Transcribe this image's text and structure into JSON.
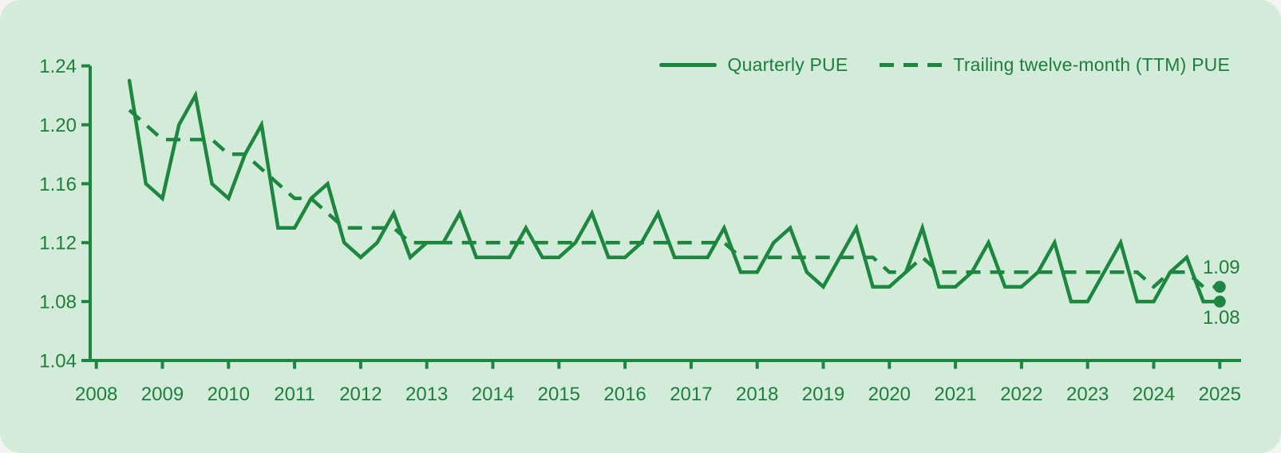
{
  "colors": {
    "line": "#1e873f",
    "text": "#1e7e3d",
    "card_bg": "#d3ecd9",
    "page_bg": "#f5f4f2"
  },
  "chart_data": {
    "type": "line",
    "title": "",
    "grid": false,
    "legend_position": "top-right",
    "x_axis": {
      "tick_labels": [
        "2008",
        "2009",
        "2010",
        "2011",
        "2012",
        "2013",
        "2014",
        "2015",
        "2016",
        "2017",
        "2018",
        "2019",
        "2020",
        "2021",
        "2022",
        "2023",
        "2024",
        "2025"
      ],
      "start_year": 2008,
      "range": [
        2008,
        2025.4
      ]
    },
    "y_axis": {
      "ticks": [
        {
          "label": "1.24",
          "value": 1.24
        },
        {
          "label": "1.20",
          "value": 1.2
        },
        {
          "label": "1.16",
          "value": 1.16
        },
        {
          "label": "1.12",
          "value": 1.12
        },
        {
          "label": "1.08",
          "value": 1.08
        },
        {
          "label": "1.04",
          "value": 1.04
        }
      ],
      "range": [
        1.04,
        1.245
      ]
    },
    "series": [
      {
        "name": "Quarterly PUE",
        "style": "solid",
        "x_start": 2008.5,
        "x_step": 0.25,
        "end_dot": true,
        "values": [
          1.23,
          1.16,
          1.15,
          1.2,
          1.22,
          1.16,
          1.15,
          1.18,
          1.2,
          1.13,
          1.13,
          1.15,
          1.16,
          1.12,
          1.11,
          1.12,
          1.14,
          1.11,
          1.12,
          1.12,
          1.14,
          1.11,
          1.11,
          1.11,
          1.13,
          1.11,
          1.11,
          1.12,
          1.14,
          1.11,
          1.11,
          1.12,
          1.14,
          1.11,
          1.11,
          1.11,
          1.13,
          1.1,
          1.1,
          1.12,
          1.13,
          1.1,
          1.09,
          1.11,
          1.13,
          1.09,
          1.09,
          1.1,
          1.13,
          1.09,
          1.09,
          1.1,
          1.12,
          1.09,
          1.09,
          1.1,
          1.12,
          1.08,
          1.08,
          1.1,
          1.12,
          1.08,
          1.08,
          1.1,
          1.11,
          1.08,
          1.08
        ]
      },
      {
        "name": "Trailing twelve-month (TTM) PUE",
        "style": "dashed",
        "x_start": 2008.5,
        "x_step": 0.25,
        "end_dot": true,
        "values": [
          1.21,
          1.2,
          1.19,
          1.19,
          1.19,
          1.19,
          1.18,
          1.18,
          1.17,
          1.16,
          1.15,
          1.15,
          1.14,
          1.13,
          1.13,
          1.13,
          1.13,
          1.12,
          1.12,
          1.12,
          1.12,
          1.12,
          1.12,
          1.12,
          1.12,
          1.12,
          1.12,
          1.12,
          1.12,
          1.12,
          1.12,
          1.12,
          1.12,
          1.12,
          1.12,
          1.12,
          1.12,
          1.11,
          1.11,
          1.11,
          1.11,
          1.11,
          1.11,
          1.11,
          1.11,
          1.11,
          1.1,
          1.1,
          1.11,
          1.1,
          1.1,
          1.1,
          1.1,
          1.1,
          1.1,
          1.1,
          1.1,
          1.1,
          1.1,
          1.1,
          1.1,
          1.1,
          1.09,
          1.1,
          1.1,
          1.09,
          1.09
        ]
      }
    ],
    "annotations": [
      {
        "text": "1.09",
        "x": 2025.0,
        "value": 1.09,
        "dy": -16.5
      },
      {
        "text": "1.08",
        "x": 2025.0,
        "value": 1.08,
        "dy": 28
      }
    ]
  }
}
